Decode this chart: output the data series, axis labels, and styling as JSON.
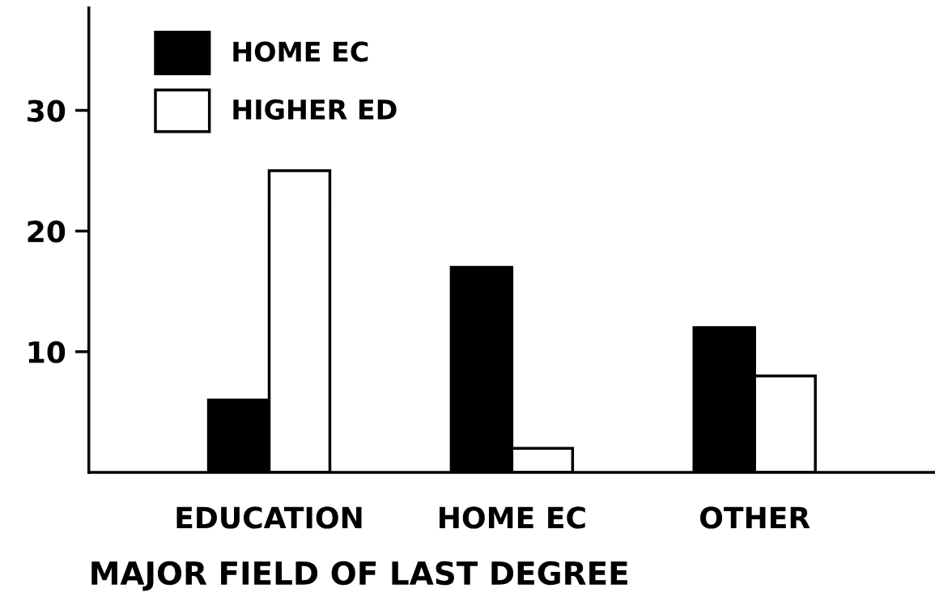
{
  "chart_data": {
    "type": "bar",
    "xlabel": "MAJOR FIELD OF LAST DEGREE",
    "categories": [
      "EDUCATION",
      "HOME EC",
      "OTHER"
    ],
    "series": [
      {
        "name": "HOME EC",
        "color": "#000000",
        "values": [
          6,
          17,
          12
        ]
      },
      {
        "name": "HIGHER ED",
        "color": "#ffffff",
        "values": [
          25,
          2,
          8
        ]
      }
    ],
    "ylim": [
      0,
      38.5
    ],
    "yticks": [
      10,
      20,
      30
    ],
    "grid": false,
    "legend": "top left"
  }
}
